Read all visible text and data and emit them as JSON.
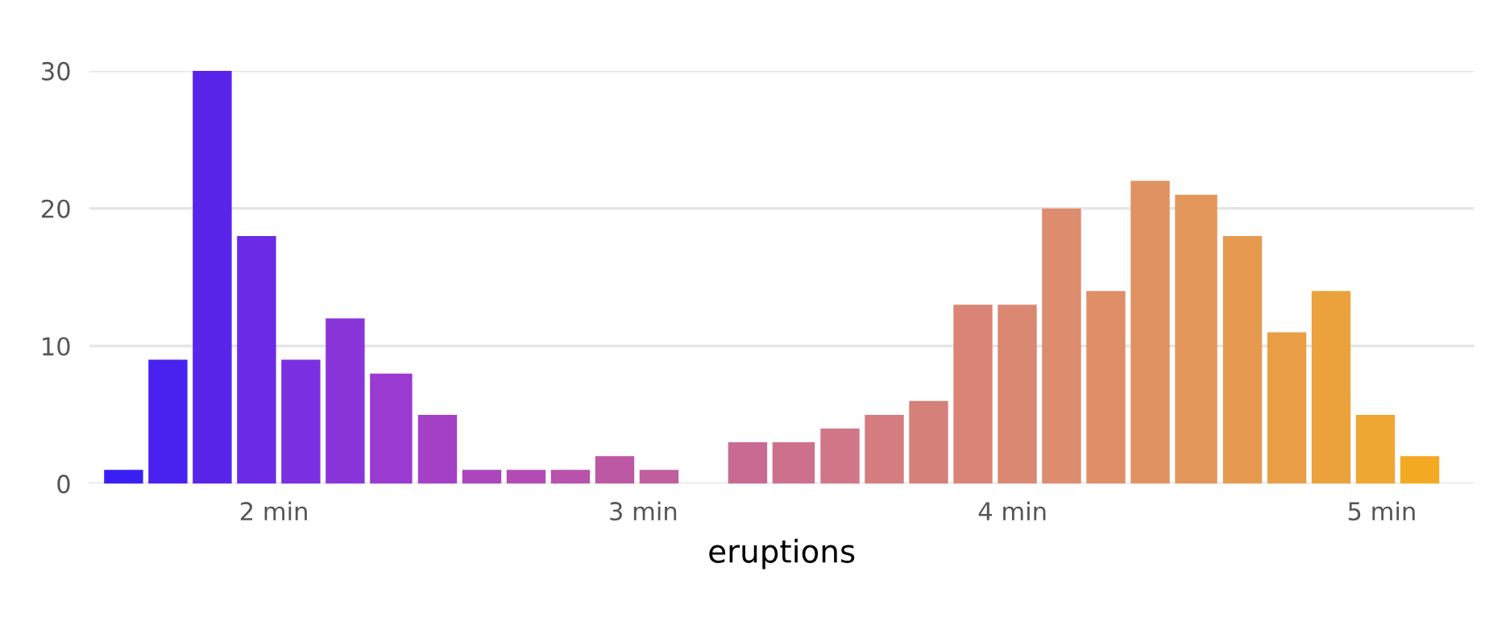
{
  "chart_data": {
    "type": "histogram",
    "xlabel": "eruptions",
    "bins": [
      1.54,
      1.66,
      1.78,
      1.9,
      2.02,
      2.14,
      2.26,
      2.39,
      2.51,
      2.63,
      2.75,
      2.87,
      2.99,
      3.11,
      3.23,
      3.35,
      3.48,
      3.6,
      3.72,
      3.84,
      3.96,
      4.08,
      4.2,
      4.32,
      4.44,
      4.57,
      4.69,
      4.81,
      4.93,
      5.05,
      5.17
    ],
    "values": [
      1,
      9,
      30,
      18,
      9,
      12,
      8,
      5,
      1,
      1,
      1,
      2,
      1,
      0,
      3,
      3,
      4,
      5,
      6,
      13,
      13,
      20,
      14,
      22,
      21,
      18,
      11,
      14,
      5,
      2
    ],
    "colors": [
      "#3a1ff5",
      "#4a22f0",
      "#5a25eb",
      "#6a2ae6",
      "#7a2fe0",
      "#8a35da",
      "#9a3ad0",
      "#a440c6",
      "#ac46bc",
      "#b24cb2",
      "#b852aa",
      "#bc58a4",
      "#c05e9e",
      "#c46498",
      "#c86a92",
      "#cc708c",
      "#d07686",
      "#d47c80",
      "#d6807a",
      "#d98476",
      "#db8872",
      "#dd8c6e",
      "#df8e68",
      "#e19262",
      "#e3965a",
      "#e69a50",
      "#e99e46",
      "#eca23c",
      "#efa632",
      "#f3aa22"
    ],
    "xlim": [
      1.5,
      5.25
    ],
    "xticks": [
      {
        "value": 2,
        "label": "2 min"
      },
      {
        "value": 3,
        "label": "3 min"
      },
      {
        "value": 4,
        "label": "4 min"
      },
      {
        "value": 5,
        "label": "5 min"
      }
    ],
    "ylim": [
      0,
      30
    ],
    "yticks": [
      0,
      10,
      20,
      30
    ],
    "grid": "y"
  }
}
